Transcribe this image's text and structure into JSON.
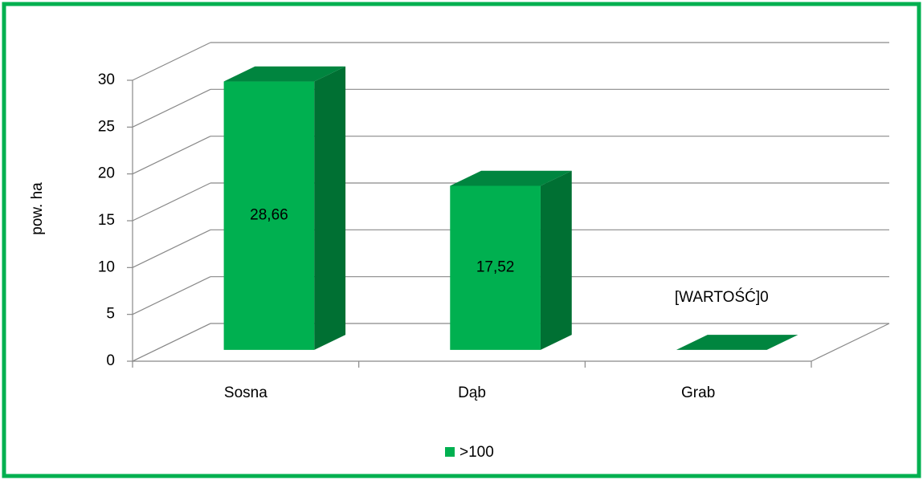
{
  "chart_data": {
    "type": "bar3d",
    "categories": [
      "Sosna",
      "Dąb",
      "Grab"
    ],
    "series": [
      {
        "name": ">100",
        "color": "#00b050",
        "values": [
          28.66,
          17.52,
          0
        ],
        "value_labels": [
          "28,66",
          "17,52",
          "[WARTOŚĆ]0"
        ]
      }
    ],
    "ylabel": "pow. ha",
    "ylim": [
      0,
      30
    ],
    "yticks": [
      0,
      5,
      10,
      15,
      20,
      25,
      30
    ],
    "grid": true,
    "legend": "bottom"
  }
}
